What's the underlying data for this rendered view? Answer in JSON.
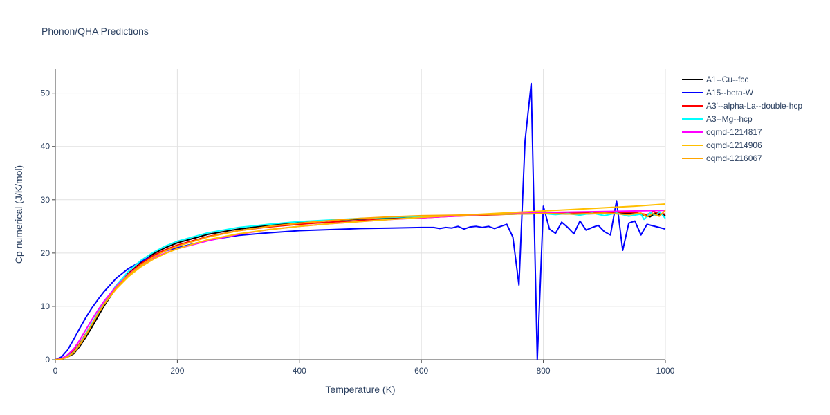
{
  "chart_data": {
    "type": "line",
    "title": "Phonon/QHA Predictions",
    "xlabel": "Temperature (K)",
    "ylabel": "Cp numerical (J/K/mol)",
    "xlim": [
      0,
      1000
    ],
    "ylim": [
      0,
      54.5
    ],
    "xticks": [
      0,
      200,
      400,
      600,
      800,
      1000
    ],
    "yticks": [
      0,
      10,
      20,
      30,
      40,
      50
    ],
    "grid": true,
    "legend_position": "right",
    "series": [
      {
        "name": "A1--Cu--fcc",
        "color": "#000000",
        "points": [
          [
            0,
            0
          ],
          [
            10,
            0.1
          ],
          [
            20,
            0.5
          ],
          [
            30,
            1.1
          ],
          [
            40,
            2.5
          ],
          [
            50,
            4.2
          ],
          [
            60,
            6.1
          ],
          [
            70,
            8.1
          ],
          [
            80,
            10.1
          ],
          [
            100,
            13.5
          ],
          [
            120,
            16.2
          ],
          [
            140,
            18.2
          ],
          [
            160,
            19.8
          ],
          [
            180,
            21.0
          ],
          [
            200,
            21.9
          ],
          [
            250,
            23.5
          ],
          [
            300,
            24.5
          ],
          [
            350,
            25.2
          ],
          [
            400,
            25.7
          ],
          [
            450,
            26.1
          ],
          [
            500,
            26.4
          ],
          [
            550,
            26.6
          ],
          [
            600,
            26.8
          ],
          [
            650,
            27.0
          ],
          [
            700,
            27.2
          ],
          [
            750,
            27.3
          ],
          [
            800,
            27.4
          ],
          [
            850,
            27.3
          ],
          [
            900,
            27.4
          ],
          [
            950,
            27.5
          ],
          [
            965,
            27.1
          ],
          [
            975,
            26.8
          ],
          [
            985,
            27.6
          ],
          [
            990,
            27.1
          ],
          [
            995,
            27.4
          ],
          [
            1000,
            27.0
          ]
        ]
      },
      {
        "name": "A15--beta-W",
        "color": "#0000ff",
        "points": [
          [
            0,
            0
          ],
          [
            10,
            0.5
          ],
          [
            20,
            1.8
          ],
          [
            30,
            3.8
          ],
          [
            40,
            5.9
          ],
          [
            50,
            7.9
          ],
          [
            60,
            9.7
          ],
          [
            70,
            11.3
          ],
          [
            80,
            12.8
          ],
          [
            100,
            15.3
          ],
          [
            120,
            17.1
          ],
          [
            140,
            18.4
          ],
          [
            160,
            19.5
          ],
          [
            180,
            20.4
          ],
          [
            200,
            21.0
          ],
          [
            250,
            22.4
          ],
          [
            300,
            23.3
          ],
          [
            350,
            23.8
          ],
          [
            400,
            24.2
          ],
          [
            450,
            24.4
          ],
          [
            500,
            24.6
          ],
          [
            550,
            24.7
          ],
          [
            600,
            24.8
          ],
          [
            620,
            24.8
          ],
          [
            630,
            24.6
          ],
          [
            640,
            24.8
          ],
          [
            650,
            24.7
          ],
          [
            660,
            25.0
          ],
          [
            670,
            24.5
          ],
          [
            680,
            24.9
          ],
          [
            690,
            25.0
          ],
          [
            700,
            24.8
          ],
          [
            710,
            25.0
          ],
          [
            720,
            24.6
          ],
          [
            730,
            25.0
          ],
          [
            740,
            25.4
          ],
          [
            750,
            23.0
          ],
          [
            760,
            14.0
          ],
          [
            770,
            41.0
          ],
          [
            780,
            51.8
          ],
          [
            790,
            0.0
          ],
          [
            800,
            28.8
          ],
          [
            810,
            24.5
          ],
          [
            820,
            23.7
          ],
          [
            830,
            25.8
          ],
          [
            840,
            24.8
          ],
          [
            850,
            23.6
          ],
          [
            860,
            26.0
          ],
          [
            870,
            24.3
          ],
          [
            880,
            24.8
          ],
          [
            890,
            25.2
          ],
          [
            900,
            24.0
          ],
          [
            910,
            23.4
          ],
          [
            920,
            29.8
          ],
          [
            930,
            20.5
          ],
          [
            940,
            25.6
          ],
          [
            950,
            26.0
          ],
          [
            960,
            23.4
          ],
          [
            970,
            25.4
          ],
          [
            980,
            25.1
          ],
          [
            990,
            24.8
          ],
          [
            1000,
            24.5
          ]
        ]
      },
      {
        "name": "A3'--alpha-La--double-hcp",
        "color": "#ff0000",
        "points": [
          [
            0,
            0
          ],
          [
            10,
            0.1
          ],
          [
            20,
            0.7
          ],
          [
            30,
            1.6
          ],
          [
            40,
            3.1
          ],
          [
            50,
            4.9
          ],
          [
            60,
            6.8
          ],
          [
            70,
            8.7
          ],
          [
            80,
            10.5
          ],
          [
            100,
            13.6
          ],
          [
            120,
            16.1
          ],
          [
            140,
            18.0
          ],
          [
            160,
            19.5
          ],
          [
            180,
            20.6
          ],
          [
            200,
            21.5
          ],
          [
            250,
            23.1
          ],
          [
            300,
            24.2
          ],
          [
            350,
            24.9
          ],
          [
            400,
            25.4
          ],
          [
            450,
            25.8
          ],
          [
            500,
            26.1
          ],
          [
            550,
            26.4
          ],
          [
            600,
            26.6
          ],
          [
            650,
            26.9
          ],
          [
            700,
            27.1
          ],
          [
            750,
            27.3
          ],
          [
            800,
            27.5
          ],
          [
            850,
            27.5
          ],
          [
            900,
            27.6
          ],
          [
            950,
            27.6
          ],
          [
            970,
            27.2
          ],
          [
            980,
            27.8
          ],
          [
            990,
            27.4
          ],
          [
            1000,
            27.3
          ]
        ]
      },
      {
        "name": "A3--Mg--hcp",
        "color": "#00ffff",
        "points": [
          [
            0,
            0
          ],
          [
            10,
            0.1
          ],
          [
            20,
            0.6
          ],
          [
            30,
            1.4
          ],
          [
            40,
            2.9
          ],
          [
            50,
            4.8
          ],
          [
            60,
            6.8
          ],
          [
            70,
            8.8
          ],
          [
            80,
            10.7
          ],
          [
            100,
            14.0
          ],
          [
            120,
            16.6
          ],
          [
            140,
            18.6
          ],
          [
            160,
            20.1
          ],
          [
            180,
            21.3
          ],
          [
            200,
            22.2
          ],
          [
            250,
            23.8
          ],
          [
            300,
            24.8
          ],
          [
            350,
            25.4
          ],
          [
            400,
            25.9
          ],
          [
            450,
            26.2
          ],
          [
            500,
            26.5
          ],
          [
            550,
            26.7
          ],
          [
            600,
            26.9
          ],
          [
            650,
            27.0
          ],
          [
            700,
            27.2
          ],
          [
            750,
            27.3
          ],
          [
            800,
            27.4
          ],
          [
            820,
            27.2
          ],
          [
            840,
            27.4
          ],
          [
            860,
            27.1
          ],
          [
            880,
            27.5
          ],
          [
            900,
            27.0
          ],
          [
            920,
            27.5
          ],
          [
            940,
            26.9
          ],
          [
            960,
            27.3
          ],
          [
            965,
            26.3
          ],
          [
            975,
            27.6
          ],
          [
            985,
            27.0
          ],
          [
            990,
            27.8
          ],
          [
            1000,
            26.5
          ]
        ]
      },
      {
        "name": "oqmd-1214817",
        "color": "#ff00ff",
        "points": [
          [
            0,
            0
          ],
          [
            10,
            0.2
          ],
          [
            20,
            0.9
          ],
          [
            30,
            2.0
          ],
          [
            40,
            3.7
          ],
          [
            50,
            5.6
          ],
          [
            60,
            7.5
          ],
          [
            70,
            9.3
          ],
          [
            80,
            11.0
          ],
          [
            100,
            13.8
          ],
          [
            120,
            16.0
          ],
          [
            140,
            17.7
          ],
          [
            160,
            19.0
          ],
          [
            180,
            20.0
          ],
          [
            200,
            20.8
          ],
          [
            250,
            22.3
          ],
          [
            300,
            23.5
          ],
          [
            350,
            24.4
          ],
          [
            400,
            25.0
          ],
          [
            450,
            25.5
          ],
          [
            500,
            25.9
          ],
          [
            550,
            26.3
          ],
          [
            600,
            26.6
          ],
          [
            650,
            26.9
          ],
          [
            700,
            27.2
          ],
          [
            750,
            27.4
          ],
          [
            800,
            27.6
          ],
          [
            850,
            27.7
          ],
          [
            900,
            27.8
          ],
          [
            950,
            27.9
          ],
          [
            1000,
            28.0
          ]
        ]
      },
      {
        "name": "oqmd-1214906",
        "color": "#ffbf00",
        "points": [
          [
            0,
            0
          ],
          [
            10,
            0.1
          ],
          [
            20,
            0.5
          ],
          [
            30,
            1.3
          ],
          [
            40,
            2.8
          ],
          [
            50,
            4.6
          ],
          [
            60,
            6.6
          ],
          [
            70,
            8.6
          ],
          [
            80,
            10.4
          ],
          [
            100,
            13.3
          ],
          [
            120,
            15.6
          ],
          [
            140,
            17.4
          ],
          [
            160,
            18.8
          ],
          [
            180,
            19.9
          ],
          [
            200,
            20.8
          ],
          [
            250,
            22.5
          ],
          [
            300,
            23.6
          ],
          [
            350,
            24.4
          ],
          [
            400,
            25.0
          ],
          [
            450,
            25.5
          ],
          [
            500,
            25.9
          ],
          [
            550,
            26.3
          ],
          [
            600,
            26.7
          ],
          [
            650,
            27.0
          ],
          [
            700,
            27.3
          ],
          [
            750,
            27.6
          ],
          [
            800,
            27.9
          ],
          [
            850,
            28.2
          ],
          [
            900,
            28.5
          ],
          [
            950,
            28.8
          ],
          [
            1000,
            29.2
          ]
        ]
      },
      {
        "name": "oqmd-1216067",
        "color": "#ffa500",
        "points": [
          [
            0,
            0
          ],
          [
            10,
            0.1
          ],
          [
            20,
            0.5
          ],
          [
            30,
            1.3
          ],
          [
            40,
            2.8
          ],
          [
            50,
            4.6
          ],
          [
            60,
            6.6
          ],
          [
            70,
            8.6
          ],
          [
            80,
            10.5
          ],
          [
            100,
            13.5
          ],
          [
            120,
            15.9
          ],
          [
            140,
            17.7
          ],
          [
            160,
            19.2
          ],
          [
            180,
            20.4
          ],
          [
            200,
            21.3
          ],
          [
            250,
            23.0
          ],
          [
            300,
            24.2
          ],
          [
            350,
            25.0
          ],
          [
            400,
            25.6
          ],
          [
            450,
            26.1
          ],
          [
            500,
            26.5
          ],
          [
            550,
            26.8
          ],
          [
            600,
            27.0
          ],
          [
            650,
            27.1
          ],
          [
            700,
            27.2
          ],
          [
            750,
            27.3
          ],
          [
            800,
            27.4
          ],
          [
            850,
            27.3
          ],
          [
            900,
            27.5
          ],
          [
            940,
            27.2
          ],
          [
            960,
            27.5
          ],
          [
            970,
            26.8
          ],
          [
            980,
            27.4
          ],
          [
            990,
            26.9
          ],
          [
            1000,
            28.0
          ]
        ]
      }
    ]
  }
}
